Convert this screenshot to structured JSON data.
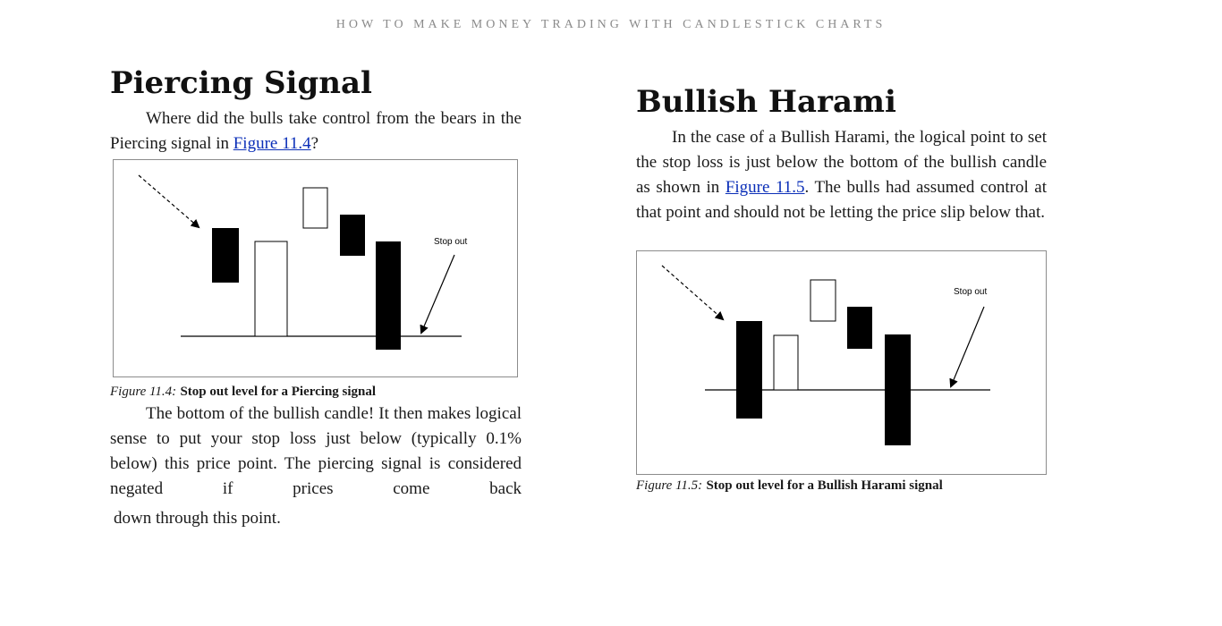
{
  "running_head": "HOW TO MAKE MONEY TRADING WITH CANDLESTICK CHARTS",
  "left": {
    "heading": "Piercing Signal",
    "para1_before": "Where did the bulls take control from the bears in the Piercing signal in ",
    "para1_link": "Figure 11.4",
    "para1_after": "?",
    "figure": {
      "label": "Stop out",
      "caption_num": "Figure 11.4:",
      "caption_title": "Stop out level for a Piercing signal"
    },
    "para2": "The bottom of the bullish candle! It then makes logical sense to put your stop loss just below (typically 0.1% below) this price point. The piercing signal is considered negated if prices come back",
    "para2_last": "down through this point."
  },
  "right": {
    "heading": "Bullish Harami",
    "para1_before": "In the case of a Bullish Harami, the logical point to set the stop loss is just below the bottom of the bullish candle as shown in ",
    "para1_link": "Figure 11.5",
    "para1_after": ". The bulls had assumed control at that point and should not be letting the price slip below that.",
    "figure": {
      "label": "Stop out",
      "caption_num": "Figure 11.5:",
      "caption_title": "Stop out level for a Bullish Harami signal"
    }
  }
}
